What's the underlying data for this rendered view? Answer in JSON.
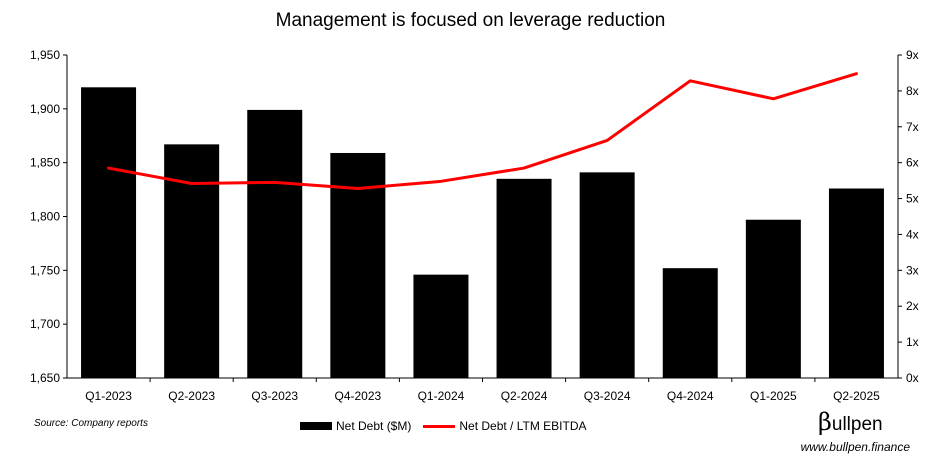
{
  "title": "Management is focused on leverage reduction",
  "source": "Source: Company reports",
  "logo": {
    "mark": "β",
    "text": "ullpen"
  },
  "website": "www.bullpen.finance",
  "colors": {
    "bar": "#000000",
    "line": "#ff0000"
  },
  "chart_data": {
    "type": "bar",
    "title": "Management is focused on leverage reduction",
    "categories": [
      "Q1-2023",
      "Q2-2023",
      "Q3-2023",
      "Q4-2023",
      "Q1-2024",
      "Q2-2024",
      "Q3-2024",
      "Q4-2024",
      "Q1-2025",
      "Q2-2025"
    ],
    "series": [
      {
        "name": "Net Debt ($M)",
        "type": "bar",
        "axis": "left",
        "values": [
          1920,
          1867,
          1899,
          1859,
          1746,
          1835,
          1841,
          1752,
          1797,
          1826
        ]
      },
      {
        "name": "Net Debt / LTM EBITDA",
        "type": "line",
        "axis": "right",
        "values": [
          5.85,
          5.42,
          5.45,
          5.28,
          5.48,
          5.85,
          6.62,
          8.28,
          7.78,
          8.48
        ]
      }
    ],
    "y_left": {
      "ylim": [
        1650,
        1950
      ],
      "tick_labels": [
        "1,650",
        "1,700",
        "1,750",
        "1,800",
        "1,850",
        "1,900",
        "1,950"
      ]
    },
    "y_right": {
      "ylim": [
        0,
        9
      ],
      "tick_labels": [
        "0x",
        "1x",
        "2x",
        "3x",
        "4x",
        "5x",
        "6x",
        "7x",
        "8x",
        "9x"
      ]
    },
    "grid": false,
    "legend": "bottom"
  }
}
